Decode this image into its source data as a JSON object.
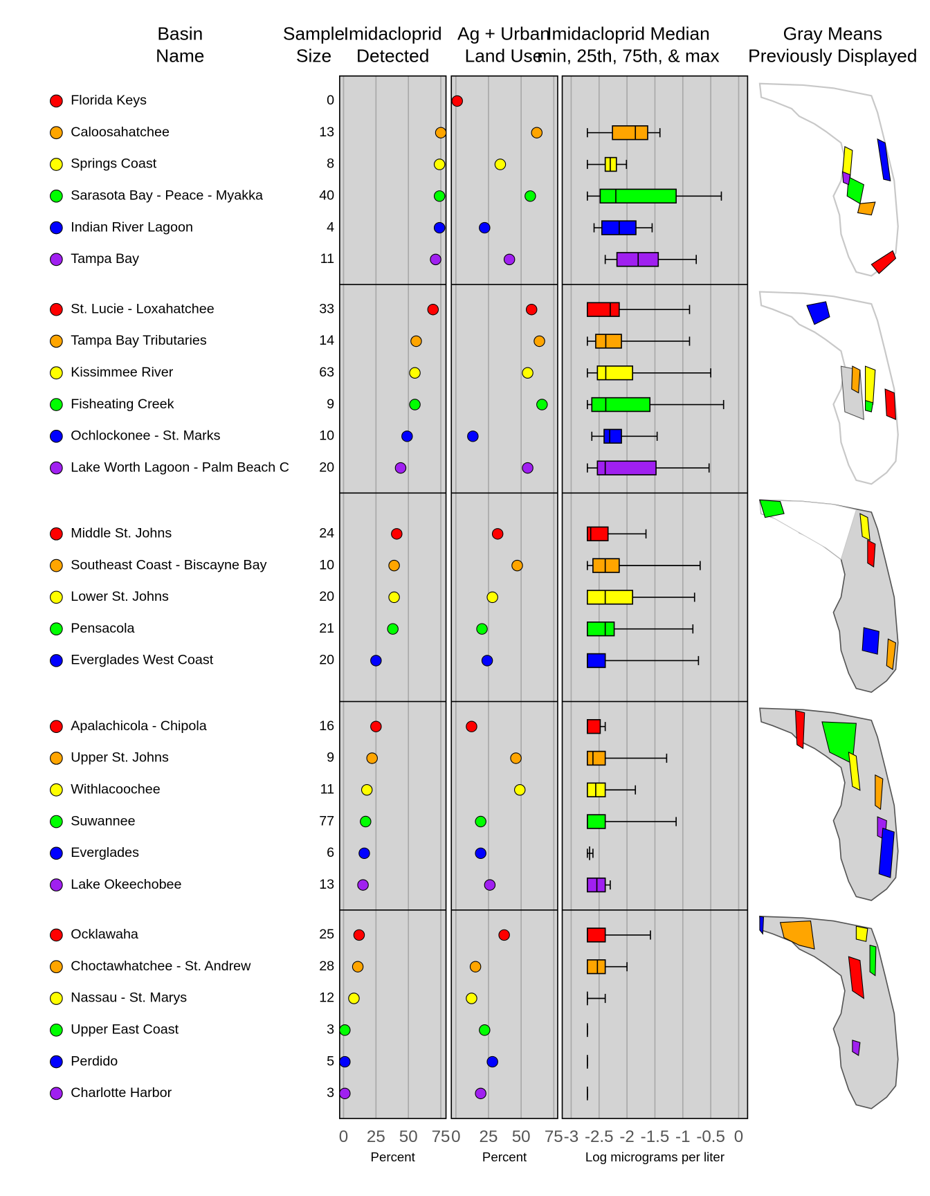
{
  "chart_data": {
    "type": "dotplot",
    "headers": {
      "basin": [
        "Basin",
        "Name"
      ],
      "n": [
        "Sample",
        "Size"
      ],
      "detected": [
        "Imidacloprid",
        "Detected"
      ],
      "landuse": [
        "Ag + Urban",
        "Land Use"
      ],
      "box": [
        "Imidacloprid Median",
        "min, 25th, 75th, & max"
      ],
      "map": [
        "Gray Means",
        "Previously Displayed"
      ]
    },
    "panels": [
      {
        "xlabel": "Percent",
        "xlim": [
          -3,
          79
        ],
        "xticks": [
          0,
          25,
          50,
          75
        ]
      },
      {
        "xlabel": "Percent",
        "xlim": [
          -3.5,
          78
        ],
        "xticks": [
          0,
          25,
          50,
          75
        ]
      },
      {
        "xlabel": "Log micrograms per liter",
        "xlim": [
          -3.16,
          0.16
        ],
        "xticks": [
          -3,
          -2.5,
          -2,
          -1.5,
          -1,
          -0.5,
          0
        ]
      }
    ],
    "groups": [
      {
        "basins": [
          {
            "name": "Florida Keys",
            "color": "#ff0000",
            "n": 0,
            "detected": null,
            "landuse": 1,
            "box": null
          },
          {
            "name": "Caloosahatchee",
            "color": "#ffa500",
            "n": 13,
            "detected": 75,
            "landuse": 62,
            "box": [
              -2.71,
              -2.26,
              -1.85,
              -1.63,
              -1.41
            ]
          },
          {
            "name": "Springs Coast",
            "color": "#ffff00",
            "n": 8,
            "detected": 74,
            "landuse": 34,
            "box": [
              -2.71,
              -2.39,
              -2.3,
              -2.19,
              -2.01
            ]
          },
          {
            "name": "Sarasota Bay - Peace - Myakka",
            "color": "#00ff00",
            "n": 40,
            "detected": 74,
            "landuse": 57,
            "box": [
              -2.71,
              -2.48,
              -2.2,
              -1.12,
              -0.31
            ]
          },
          {
            "name": "Indian River Lagoon",
            "color": "#0000ff",
            "n": 4,
            "detected": 74,
            "landuse": 22,
            "box": [
              -2.59,
              -2.45,
              -2.14,
              -1.84,
              -1.55
            ]
          },
          {
            "name": "Tampa Bay",
            "color": "#a020f0",
            "n": 11,
            "detected": 71,
            "landuse": 41,
            "box": [
              -2.39,
              -2.18,
              -1.8,
              -1.44,
              -0.76
            ]
          }
        ]
      },
      {
        "basins": [
          {
            "name": "St. Lucie - Loxahatchee",
            "color": "#ff0000",
            "n": 33,
            "detected": 69,
            "landuse": 58,
            "box": [
              -2.71,
              -2.71,
              -2.3,
              -2.14,
              -0.88
            ]
          },
          {
            "name": "Tampa Bay Tributaries",
            "color": "#ffa500",
            "n": 14,
            "detected": 56,
            "landuse": 64,
            "box": [
              -2.71,
              -2.56,
              -2.38,
              -2.1,
              -0.88
            ]
          },
          {
            "name": "Kissimmee River",
            "color": "#ffff00",
            "n": 63,
            "detected": 55,
            "landuse": 55,
            "box": [
              -2.71,
              -2.53,
              -2.38,
              -1.9,
              -0.5
            ]
          },
          {
            "name": "Fisheating Creek",
            "color": "#00ff00",
            "n": 9,
            "detected": 55,
            "landuse": 66,
            "box": [
              -2.71,
              -2.63,
              -2.38,
              -1.59,
              -0.27
            ]
          },
          {
            "name": "Ochlockonee - St. Marks",
            "color": "#0000ff",
            "n": 10,
            "detected": 49,
            "landuse": 13,
            "box": [
              -2.63,
              -2.41,
              -2.31,
              -2.1,
              -1.46
            ]
          },
          {
            "name": "Lake Worth Lagoon - Palm Beach C",
            "color": "#a020f0",
            "n": 20,
            "detected": 44,
            "landuse": 55,
            "box": [
              -2.71,
              -2.53,
              -2.39,
              -1.48,
              -0.53
            ]
          }
        ]
      },
      {
        "basins": [
          {
            "name": "Middle St. Johns",
            "color": "#ff0000",
            "n": 24,
            "detected": 41,
            "landuse": 32,
            "box": [
              -2.71,
              -2.71,
              -2.65,
              -2.34,
              -1.66
            ]
          },
          {
            "name": "Southeast Coast - Biscayne Bay",
            "color": "#ffa500",
            "n": 10,
            "detected": 39,
            "landuse": 47,
            "box": [
              -2.71,
              -2.61,
              -2.39,
              -2.14,
              -0.69
            ]
          },
          {
            "name": "Lower St. Johns",
            "color": "#ffff00",
            "n": 20,
            "detected": 39,
            "landuse": 28,
            "box": [
              -2.71,
              -2.71,
              -2.39,
              -1.9,
              -0.79
            ]
          },
          {
            "name": "Pensacola",
            "color": "#00ff00",
            "n": 21,
            "detected": 38,
            "landuse": 20,
            "box": [
              -2.71,
              -2.71,
              -2.39,
              -2.23,
              -0.82
            ]
          },
          {
            "name": "Everglades West Coast",
            "color": "#0000ff",
            "n": 20,
            "detected": 25,
            "landuse": 24,
            "box": [
              -2.71,
              -2.71,
              -2.71,
              -2.39,
              -0.72
            ]
          }
        ]
      },
      {
        "basins": [
          {
            "name": "Apalachicola - Chipola",
            "color": "#ff0000",
            "n": 16,
            "detected": 25,
            "landuse": 12,
            "box": [
              -2.71,
              -2.71,
              -2.71,
              -2.48,
              -2.39
            ]
          },
          {
            "name": "Upper St. Johns",
            "color": "#ffa500",
            "n": 9,
            "detected": 22,
            "landuse": 46,
            "box": [
              -2.71,
              -2.71,
              -2.61,
              -2.39,
              -1.29
            ]
          },
          {
            "name": "Withlacoochee",
            "color": "#ffff00",
            "n": 11,
            "detected": 18,
            "landuse": 49,
            "box": [
              -2.71,
              -2.71,
              -2.56,
              -2.39,
              -1.85
            ]
          },
          {
            "name": "Suwannee",
            "color": "#00ff00",
            "n": 77,
            "detected": 17,
            "landuse": 19,
            "box": [
              -2.71,
              -2.71,
              -2.71,
              -2.39,
              -1.12
            ]
          },
          {
            "name": "Everglades",
            "color": "#0000ff",
            "n": 6,
            "detected": 16,
            "landuse": 19,
            "box": [
              -2.71,
              -2.67,
              -2.67,
              -2.67,
              -2.61
            ]
          },
          {
            "name": "Lake Okeechobee",
            "color": "#a020f0",
            "n": 13,
            "detected": 15,
            "landuse": 26,
            "box": [
              -2.71,
              -2.71,
              -2.54,
              -2.39,
              -2.3
            ]
          }
        ]
      },
      {
        "basins": [
          {
            "name": "Ocklawaha",
            "color": "#ff0000",
            "n": 25,
            "detected": 12,
            "landuse": 37,
            "box": [
              -2.71,
              -2.71,
              -2.71,
              -2.39,
              -1.58
            ]
          },
          {
            "name": "Choctawhatchee - St. Andrew",
            "color": "#ffa500",
            "n": 28,
            "detected": 11,
            "landuse": 15,
            "box": [
              -2.71,
              -2.71,
              -2.53,
              -2.39,
              -2
            ]
          },
          {
            "name": "Nassau - St. Marys",
            "color": "#ffff00",
            "n": 12,
            "detected": 8,
            "landuse": 12,
            "box": [
              -2.71,
              -2.71,
              -2.71,
              -2.71,
              -2.39
            ]
          },
          {
            "name": "Upper East Coast",
            "color": "#00ff00",
            "n": 3,
            "detected": 1,
            "landuse": 22,
            "box": [
              -2.71,
              -2.71,
              -2.71,
              -2.71,
              -2.71
            ]
          },
          {
            "name": "Perdido",
            "color": "#0000ff",
            "n": 5,
            "detected": 1,
            "landuse": 28,
            "box": [
              -2.71,
              -2.71,
              -2.71,
              -2.71,
              -2.71
            ]
          },
          {
            "name": "Charlotte Harbor",
            "color": "#a020f0",
            "n": 3,
            "detected": 1,
            "landuse": 19,
            "box": [
              -2.71,
              -2.71,
              -2.71,
              -2.71,
              -2.71
            ]
          }
        ]
      }
    ]
  }
}
